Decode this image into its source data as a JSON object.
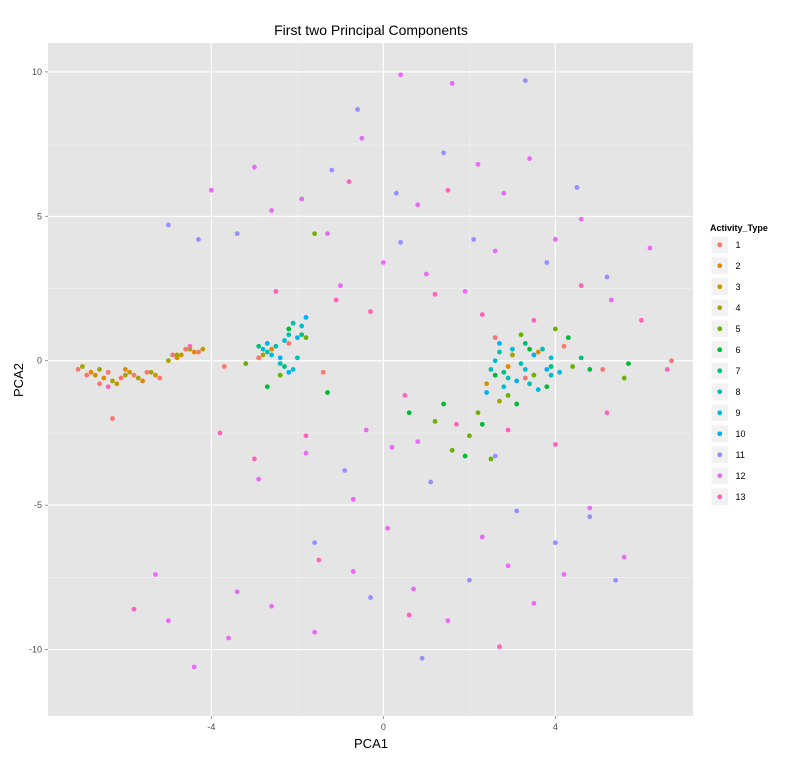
{
  "chart_data": {
    "type": "scatter",
    "title": "First two Principal Components",
    "xlabel": "PCA1",
    "ylabel": "PCA2",
    "xlim": [
      -7.8,
      7.2
    ],
    "ylim": [
      -12.3,
      11.0
    ],
    "x_ticks": [
      {
        "value": -4,
        "label": "-4"
      },
      {
        "value": 0,
        "label": "0"
      },
      {
        "value": 4,
        "label": "4"
      }
    ],
    "y_ticks": [
      {
        "value": 10,
        "label": "10"
      },
      {
        "value": 5,
        "label": "5"
      },
      {
        "value": 0,
        "label": "0"
      },
      {
        "value": -5,
        "label": "-5"
      },
      {
        "value": -10,
        "label": "-10"
      }
    ],
    "grid": true,
    "panel_background": "#e5e5e5",
    "legend": {
      "title": "Activity_Type",
      "position": "right"
    },
    "series": [
      {
        "name": "1",
        "color": "#F8766D",
        "points": [
          [
            -7.1,
            -0.3
          ],
          [
            -6.9,
            -0.5
          ],
          [
            -6.6,
            -0.8
          ],
          [
            -6.4,
            -0.4
          ],
          [
            -6.1,
            -0.6
          ],
          [
            -5.8,
            -0.5
          ],
          [
            -5.5,
            -0.4
          ],
          [
            -5.2,
            -0.6
          ],
          [
            -4.9,
            0.2
          ],
          [
            -4.6,
            0.4
          ],
          [
            -4.3,
            0.3
          ],
          [
            -3.7,
            -0.2
          ],
          [
            -2.9,
            0.1
          ],
          [
            -2.2,
            0.6
          ],
          [
            -1.4,
            -0.4
          ],
          [
            2.6,
            0.8
          ],
          [
            3.3,
            -0.6
          ],
          [
            4.2,
            0.5
          ],
          [
            5.1,
            -0.3
          ],
          [
            6.7,
            0.0
          ],
          [
            -6.3,
            -2.0
          ]
        ]
      },
      {
        "name": "2",
        "color": "#E58700",
        "points": [
          [
            -6.8,
            -0.4
          ],
          [
            -6.5,
            -0.6
          ],
          [
            -6.0,
            -0.3
          ],
          [
            -5.6,
            -0.7
          ],
          [
            -4.8,
            0.1
          ],
          [
            -4.4,
            0.3
          ],
          [
            -2.6,
            0.4
          ],
          [
            2.9,
            -0.2
          ],
          [
            3.6,
            0.3
          ]
        ]
      },
      {
        "name": "3",
        "color": "#C99800",
        "points": [
          [
            -6.7,
            -0.5
          ],
          [
            -6.2,
            -0.8
          ],
          [
            -5.9,
            -0.4
          ],
          [
            -5.3,
            -0.5
          ],
          [
            -4.7,
            0.2
          ],
          [
            -4.2,
            0.4
          ],
          [
            2.4,
            -0.8
          ]
        ]
      },
      {
        "name": "4",
        "color": "#A3A500",
        "points": [
          [
            -7.0,
            -0.2
          ],
          [
            -6.6,
            -0.3
          ],
          [
            -6.3,
            -0.7
          ],
          [
            -6.0,
            -0.5
          ],
          [
            -5.7,
            -0.6
          ],
          [
            -5.4,
            -0.4
          ],
          [
            -5.0,
            0.0
          ],
          [
            -4.8,
            0.2
          ],
          [
            -4.5,
            0.4
          ],
          [
            -2.8,
            0.2
          ],
          [
            2.7,
            -1.4
          ],
          [
            3.0,
            0.2
          ]
        ]
      },
      {
        "name": "5",
        "color": "#6BB100",
        "points": [
          [
            -3.2,
            -0.1
          ],
          [
            -2.4,
            -0.5
          ],
          [
            -1.8,
            0.8
          ],
          [
            -1.6,
            4.4
          ],
          [
            1.2,
            -2.1
          ],
          [
            1.6,
            -3.1
          ],
          [
            2.0,
            -2.6
          ],
          [
            2.2,
            -1.8
          ],
          [
            2.5,
            -3.4
          ],
          [
            2.9,
            -1.2
          ],
          [
            3.2,
            0.9
          ],
          [
            3.5,
            -0.5
          ],
          [
            4.0,
            1.1
          ],
          [
            4.4,
            -0.2
          ],
          [
            5.6,
            -0.6
          ]
        ]
      },
      {
        "name": "6",
        "color": "#00BA38",
        "points": [
          [
            -2.7,
            -0.9
          ],
          [
            -2.2,
            1.1
          ],
          [
            -1.3,
            -1.1
          ],
          [
            0.6,
            -1.8
          ],
          [
            1.4,
            -1.5
          ],
          [
            1.9,
            -3.3
          ],
          [
            2.3,
            -2.2
          ],
          [
            2.6,
            -0.5
          ],
          [
            3.1,
            -1.5
          ],
          [
            3.4,
            0.4
          ],
          [
            3.8,
            -0.9
          ],
          [
            4.3,
            0.8
          ],
          [
            4.8,
            -0.3
          ],
          [
            5.7,
            -0.1
          ]
        ]
      },
      {
        "name": "7",
        "color": "#00BF7D",
        "points": [
          [
            -2.9,
            0.5
          ],
          [
            -2.3,
            -0.2
          ],
          [
            -1.9,
            0.9
          ],
          [
            2.8,
            -0.4
          ],
          [
            3.3,
            0.6
          ],
          [
            3.9,
            -0.2
          ],
          [
            4.6,
            0.1
          ]
        ]
      },
      {
        "name": "8",
        "color": "#00C0AF",
        "points": [
          [
            -2.7,
            0.3
          ],
          [
            -2.5,
            0.5
          ],
          [
            -2.4,
            -0.1
          ],
          [
            -2.2,
            0.9
          ],
          [
            -2.1,
            1.3
          ],
          [
            -2.0,
            0.1
          ],
          [
            2.5,
            -0.3
          ],
          [
            2.7,
            0.3
          ],
          [
            2.9,
            -0.6
          ],
          [
            3.2,
            -0.1
          ],
          [
            3.4,
            -0.8
          ],
          [
            3.7,
            0.4
          ],
          [
            3.9,
            -0.5
          ]
        ]
      },
      {
        "name": "9",
        "color": "#00BCD8",
        "points": [
          [
            -2.8,
            0.4
          ],
          [
            -2.6,
            0.2
          ],
          [
            -2.3,
            0.7
          ],
          [
            -2.1,
            -0.3
          ],
          [
            -1.9,
            1.2
          ],
          [
            2.6,
            0.0
          ],
          [
            2.8,
            -0.9
          ],
          [
            3.0,
            0.4
          ],
          [
            3.3,
            -0.3
          ],
          [
            3.6,
            -1.0
          ],
          [
            3.9,
            0.1
          ],
          [
            4.1,
            -0.4
          ]
        ]
      },
      {
        "name": "10",
        "color": "#00B0F6",
        "points": [
          [
            -2.7,
            0.6
          ],
          [
            -2.4,
            0.1
          ],
          [
            -2.2,
            -0.4
          ],
          [
            -2.0,
            0.8
          ],
          [
            -1.8,
            1.5
          ],
          [
            2.4,
            -1.1
          ],
          [
            2.7,
            0.6
          ],
          [
            3.1,
            -0.7
          ],
          [
            3.5,
            0.2
          ],
          [
            3.8,
            -0.3
          ]
        ]
      },
      {
        "name": "11",
        "color": "#9590FF",
        "points": [
          [
            -5.0,
            4.7
          ],
          [
            -4.3,
            4.2
          ],
          [
            -3.4,
            4.4
          ],
          [
            -1.2,
            6.6
          ],
          [
            -0.6,
            8.7
          ],
          [
            0.3,
            5.8
          ],
          [
            1.4,
            7.2
          ],
          [
            2.1,
            4.2
          ],
          [
            3.3,
            9.7
          ],
          [
            3.8,
            3.4
          ],
          [
            4.5,
            6.0
          ],
          [
            5.2,
            2.9
          ],
          [
            -1.6,
            -6.3
          ],
          [
            -0.3,
            -8.2
          ],
          [
            0.9,
            -10.3
          ],
          [
            2.0,
            -7.6
          ],
          [
            3.1,
            -5.2
          ],
          [
            4.0,
            -6.3
          ],
          [
            4.8,
            -5.4
          ],
          [
            5.4,
            -7.6
          ],
          [
            1.1,
            -4.2
          ],
          [
            -0.9,
            -3.8
          ],
          [
            0.4,
            4.1
          ],
          [
            2.6,
            -3.3
          ]
        ]
      },
      {
        "name": "12",
        "color": "#E76BF3",
        "points": [
          [
            -4.0,
            5.9
          ],
          [
            -3.0,
            6.7
          ],
          [
            -2.6,
            5.2
          ],
          [
            -1.9,
            5.6
          ],
          [
            -1.3,
            4.4
          ],
          [
            -0.5,
            7.7
          ],
          [
            0.0,
            3.4
          ],
          [
            0.4,
            9.9
          ],
          [
            0.8,
            5.4
          ],
          [
            1.6,
            9.6
          ],
          [
            2.2,
            6.8
          ],
          [
            2.8,
            5.8
          ],
          [
            3.4,
            7.0
          ],
          [
            4.0,
            4.2
          ],
          [
            4.6,
            4.9
          ],
          [
            5.3,
            2.1
          ],
          [
            6.2,
            3.9
          ],
          [
            -5.3,
            -7.4
          ],
          [
            -5.0,
            -9.0
          ],
          [
            -4.4,
            -10.6
          ],
          [
            -3.4,
            -8.0
          ],
          [
            -2.6,
            -8.5
          ],
          [
            -1.6,
            -9.4
          ],
          [
            -0.7,
            -7.3
          ],
          [
            0.1,
            -5.8
          ],
          [
            0.7,
            -7.9
          ],
          [
            1.5,
            -9.0
          ],
          [
            2.3,
            -6.1
          ],
          [
            2.9,
            -7.1
          ],
          [
            3.5,
            -8.4
          ],
          [
            4.2,
            -7.4
          ],
          [
            4.8,
            -5.1
          ],
          [
            -2.9,
            -4.1
          ],
          [
            -1.8,
            -3.2
          ],
          [
            -0.7,
            -4.8
          ],
          [
            0.2,
            -3.0
          ],
          [
            1.0,
            3.0
          ],
          [
            -1.0,
            2.6
          ],
          [
            1.9,
            2.4
          ],
          [
            2.6,
            3.8
          ],
          [
            -0.4,
            -2.4
          ],
          [
            0.8,
            -2.8
          ],
          [
            -3.6,
            -9.6
          ],
          [
            5.6,
            -6.8
          ]
        ]
      },
      {
        "name": "13",
        "color": "#FF62BC",
        "points": [
          [
            -6.4,
            -0.9
          ],
          [
            -5.8,
            -8.6
          ],
          [
            -4.5,
            0.5
          ],
          [
            -3.8,
            -2.5
          ],
          [
            -3.0,
            -3.4
          ],
          [
            -2.5,
            2.4
          ],
          [
            -1.8,
            -2.6
          ],
          [
            -1.1,
            2.1
          ],
          [
            -0.3,
            1.7
          ],
          [
            0.5,
            -1.2
          ],
          [
            1.2,
            2.3
          ],
          [
            1.7,
            -2.2
          ],
          [
            2.3,
            1.6
          ],
          [
            2.9,
            -2.4
          ],
          [
            3.5,
            1.4
          ],
          [
            4.0,
            -2.9
          ],
          [
            4.6,
            2.6
          ],
          [
            5.2,
            -1.8
          ],
          [
            6.0,
            1.4
          ],
          [
            6.6,
            -0.3
          ],
          [
            -1.5,
            -6.9
          ],
          [
            0.6,
            -8.8
          ],
          [
            2.7,
            -9.9
          ],
          [
            -0.8,
            6.2
          ],
          [
            1.5,
            5.9
          ]
        ]
      }
    ]
  }
}
